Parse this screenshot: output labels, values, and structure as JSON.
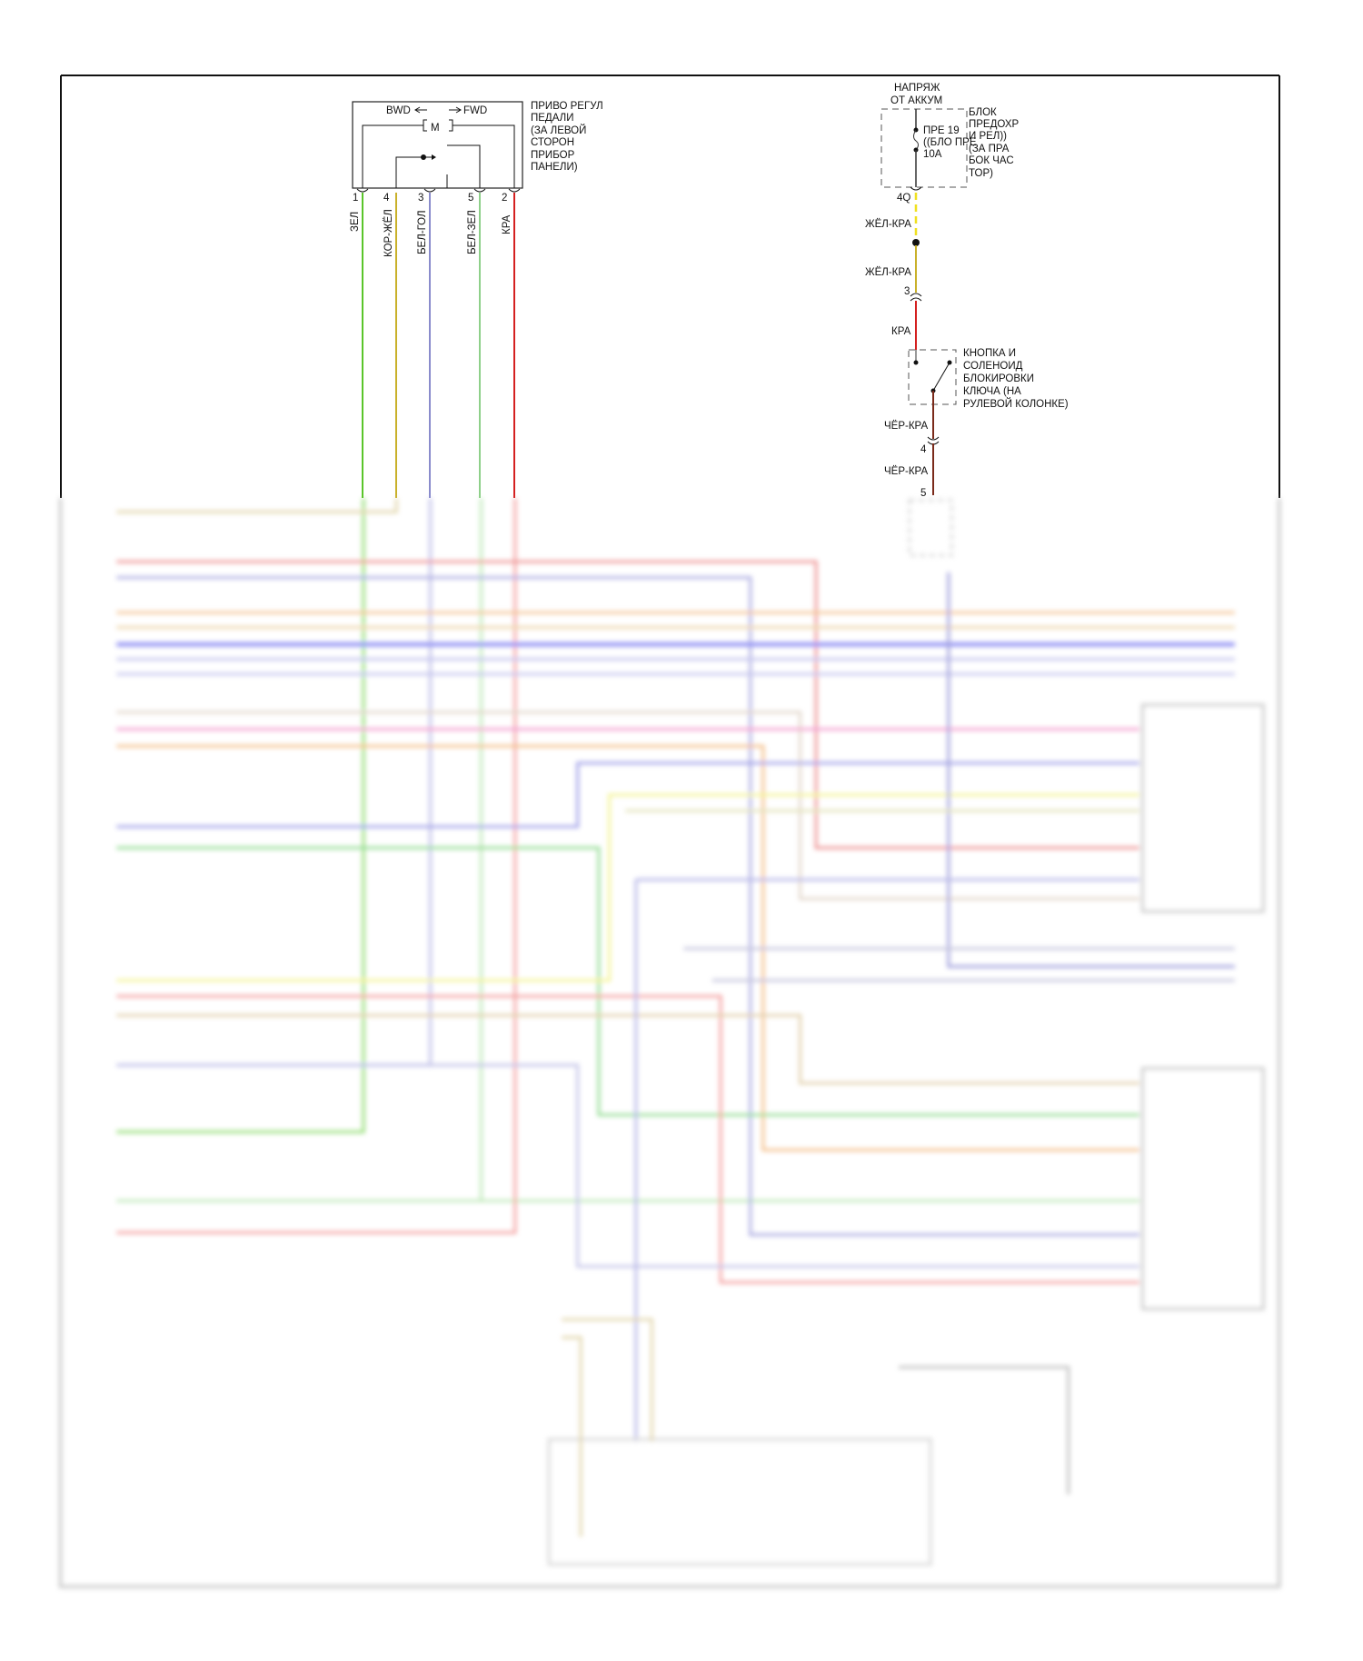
{
  "pedal_actuator": {
    "bwd": "BWD",
    "fwd": "FWD",
    "motor": "M",
    "label_lines": [
      "ПРИВО РЕГУЛ",
      "ПЕДАЛИ",
      "(ЗА ЛЕВОЙ",
      "СТОРОН",
      "ПРИБОР",
      "ПАНЕЛИ)"
    ],
    "pins": [
      {
        "pin": "1",
        "wire": "ЗЕЛ",
        "color": "#5ac52a"
      },
      {
        "pin": "4",
        "wire": "КОР-ЖЁЛ",
        "color": "#c9b12a"
      },
      {
        "pin": "3",
        "wire": "БЕЛ-ГОЛ",
        "color": "#8a8ccc"
      },
      {
        "pin": "5",
        "wire": "БЕЛ-ЗЕЛ",
        "color": "#8fd08a"
      },
      {
        "pin": "2",
        "wire": "КРА",
        "color": "#d42020"
      }
    ]
  },
  "power_feed": {
    "source_lines": [
      "НАПРЯЖ",
      "ОТ АККУМ"
    ],
    "fuse_lines": [
      "ПРЕ 19",
      "((БЛО ПРЕ",
      "10A"
    ],
    "fuse_block_lines": [
      "БЛОК",
      "ПРЕДОХР",
      "И РЕЛ))",
      "(ЗА ПРА",
      "БОК ЧАС",
      "ТОР)"
    ],
    "connector_1": "4Q",
    "wire_1": "ЖЁЛ-КРА",
    "wire_2": "ЖЁЛ-КРА",
    "connector_2": "3",
    "wire_3": "КРА",
    "switch_lines": [
      "КНОПКА И",
      "СОЛЕНОИД",
      "БЛОКИРОВКИ",
      "КЛЮЧА (НА",
      "РУЛЕВОЙ КОЛОНКЕ)"
    ],
    "wire_4": "ЧЁР-КРА",
    "connector_3": "4",
    "wire_5": "ЧЁР-КРА",
    "connector_4": "5"
  },
  "colors": {
    "yellow": "#f0e020",
    "tan": "#c9b12a",
    "red": "#d42020",
    "brown": "#7a2a1a",
    "frame": "#111111"
  }
}
